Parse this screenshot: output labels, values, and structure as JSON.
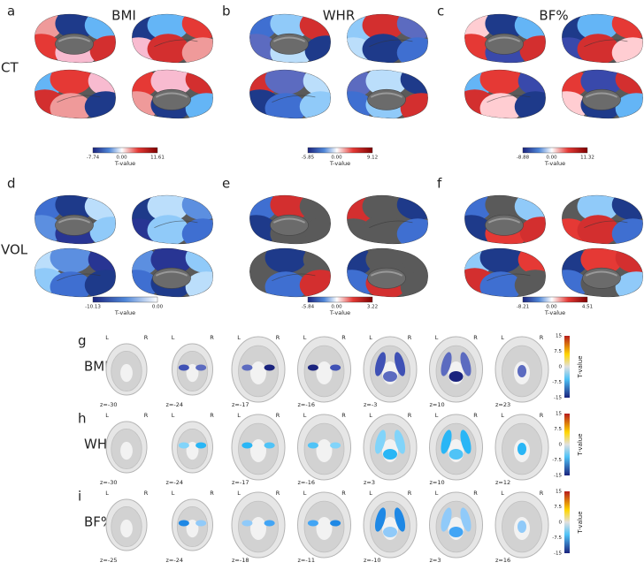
{
  "surface_panels": [
    {
      "letter": "a",
      "title": "BMI",
      "colorbar": {
        "min": "-7.74",
        "mid": "0.00",
        "max": "11.61",
        "label": "T-value"
      }
    },
    {
      "letter": "b",
      "title": "WHR",
      "colorbar": {
        "min": "-5.85",
        "mid": "0.00",
        "max": "9.12",
        "label": "T-value"
      }
    },
    {
      "letter": "c",
      "title": "BF%",
      "colorbar": {
        "min": "-8.88",
        "mid": "0.00",
        "max": "11.32",
        "label": "T-value"
      }
    },
    {
      "letter": "d",
      "colorbar": {
        "min": "-10.13",
        "max": "0.00",
        "label": "T-value"
      }
    },
    {
      "letter": "e",
      "colorbar": {
        "min": "-5.84",
        "mid": "0.00",
        "max": "3.22",
        "label": "T-value"
      }
    },
    {
      "letter": "f",
      "colorbar": {
        "min": "-8.21",
        "mid": "0.00",
        "max": "4.51",
        "label": "T-value"
      }
    }
  ],
  "row_labels": [
    "CT",
    "VOL"
  ],
  "slice_rows": [
    {
      "letter": "g",
      "label": "BMI",
      "slices": [
        "z=-30",
        "z=-24",
        "z=-17",
        "z=-16",
        "z=-3",
        "z=10",
        "z=23"
      ]
    },
    {
      "letter": "h",
      "label": "WHR",
      "slices": [
        "z=-30",
        "z=-24",
        "z=-17",
        "z=-16",
        "z=3",
        "z=10",
        "z=12"
      ]
    },
    {
      "letter": "i",
      "label": "BF%",
      "slices": [
        "z=-25",
        "z=-24",
        "z=-18",
        "z=-11",
        "z=-10",
        "z=3",
        "z=16"
      ]
    }
  ],
  "hemisphere_labels": [
    "L",
    "R"
  ],
  "colorbar_ticks": [
    "15",
    "7.5",
    "0",
    "-7.5",
    "-15"
  ],
  "colorbar_label": "T-value"
}
